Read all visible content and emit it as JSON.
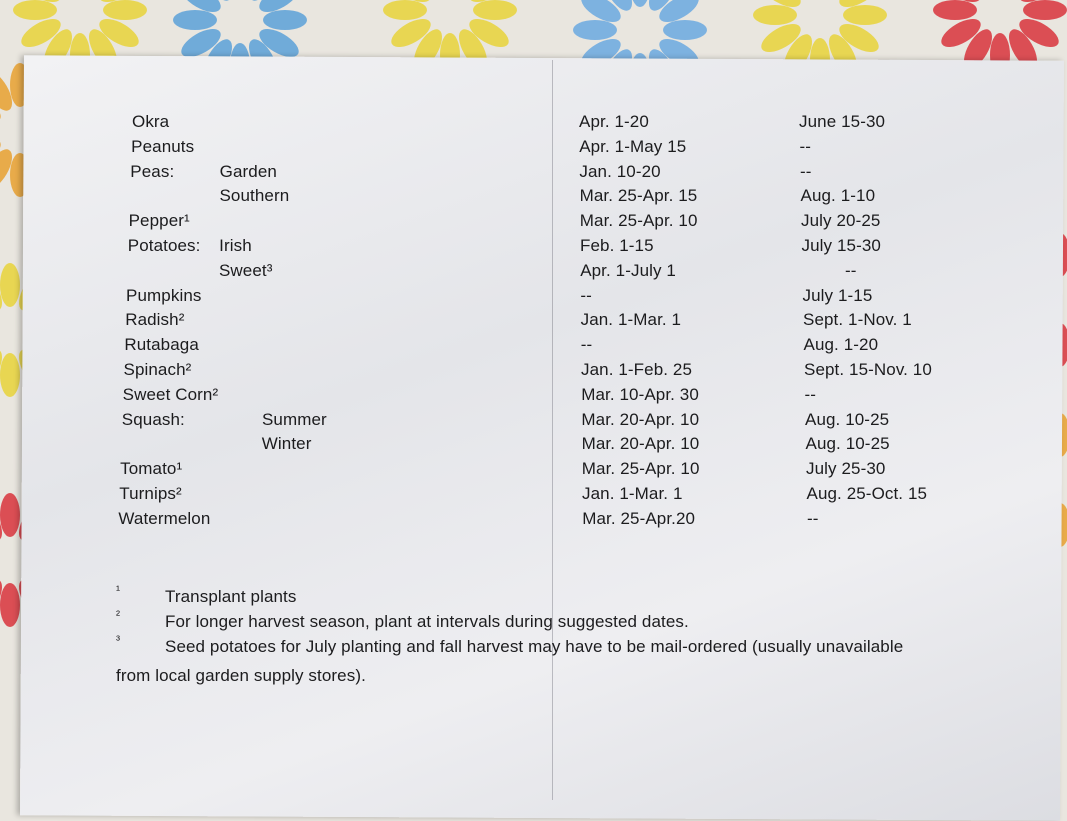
{
  "rows": [
    {
      "crop": "Okra",
      "variety": "",
      "spring": "Apr. 1-20",
      "fall": "June 15-30"
    },
    {
      "crop": "Peanuts",
      "variety": "",
      "spring": "Apr. 1-May 15",
      "fall": "--"
    },
    {
      "crop": "Peas:",
      "variety": "Garden",
      "spring": "Jan. 10-20",
      "fall": "--"
    },
    {
      "crop": "",
      "variety": "Southern",
      "spring": "Mar. 25-Apr. 15",
      "fall": "Aug. 1-10"
    },
    {
      "crop": "Pepper¹",
      "variety": "",
      "spring": "Mar. 25-Apr. 10",
      "fall": "July 20-25"
    },
    {
      "crop": "Potatoes:",
      "variety": "Irish",
      "spring": "Feb. 1-15",
      "fall": "July 15-30"
    },
    {
      "crop": "",
      "variety": "Sweet³",
      "spring": "Apr. 1-July 1",
      "fall": "--"
    },
    {
      "crop": "Pumpkins",
      "variety": "",
      "spring": "--",
      "fall": "July 1-15"
    },
    {
      "crop": "Radish²",
      "variety": "",
      "spring": "Jan. 1-Mar. 1",
      "fall": "Sept. 1-Nov. 1"
    },
    {
      "crop": "Rutabaga",
      "variety": "",
      "spring": "--",
      "fall": "Aug. 1-20"
    },
    {
      "crop": "Spinach²",
      "variety": "",
      "spring": "Jan. 1-Feb. 25",
      "fall": "Sept. 15-Nov. 10"
    },
    {
      "crop": "Sweet Corn²",
      "variety": "",
      "spring": "Mar. 10-Apr. 30",
      "fall": "--"
    },
    {
      "crop": "Squash:",
      "variety": "Summer",
      "spring": "Mar. 20-Apr. 10",
      "fall": "Aug. 10-25"
    },
    {
      "crop": "",
      "variety": "Winter",
      "spring": "Mar. 20-Apr. 10",
      "fall": "Aug. 10-25"
    },
    {
      "crop": "Tomato¹",
      "variety": "",
      "spring": "Mar. 25-Apr. 10",
      "fall": "July 25-30"
    },
    {
      "crop": "Turnips²",
      "variety": "",
      "spring": "Jan. 1-Mar. 1",
      "fall": "Aug. 25-Oct. 15"
    },
    {
      "crop": "Watermelon",
      "variety": "",
      "spring": "Mar. 25-Apr.20",
      "fall": "--"
    }
  ],
  "footnotes": [
    {
      "mark": "¹",
      "text": "Transplant plants"
    },
    {
      "mark": "²",
      "text": "For longer harvest season, plant at intervals during suggested dates."
    },
    {
      "mark": "³",
      "text": "Seed potatoes for July planting and fall harvest may have to be mail-ordered (usually unavailable"
    }
  ],
  "footnote_continuation": "from local garden supply stores).",
  "colors": {
    "paper": "#ececef",
    "text": "#1c1c1e"
  }
}
